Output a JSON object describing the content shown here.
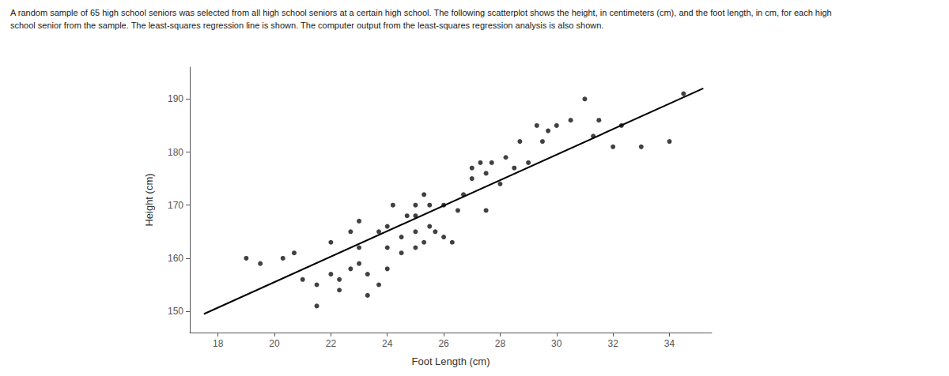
{
  "chart_data": {
    "type": "scatter",
    "title": "A random sample of 65 high school seniors was selected from all high school seniors at a certain high school. The following scatterplot shows the height, in centimeters (cm), and the foot length, in cm, for each high",
    "subtitle": "school senior from the sample. The least-squares regression line is shown. The computer output from the least-squares regression analysis is also shown.",
    "xlabel": "Foot Length (cm)",
    "ylabel": "Height (cm)",
    "xlim": [
      17.0,
      35.5
    ],
    "ylim": [
      146,
      196
    ],
    "xticks": [
      18,
      20,
      22,
      24,
      26,
      28,
      30,
      32,
      34
    ],
    "yticks": [
      150,
      160,
      170,
      180,
      190
    ],
    "grid": false,
    "series": [
      {
        "type": "scatter",
        "color": "#111111",
        "x": [
          19.0,
          19.5,
          20.3,
          20.7,
          21.0,
          21.5,
          21.5,
          22.0,
          22.0,
          22.3,
          22.3,
          22.7,
          22.7,
          23.0,
          23.0,
          23.0,
          23.3,
          23.3,
          23.7,
          23.7,
          24.0,
          24.0,
          24.0,
          24.2,
          24.5,
          24.5,
          24.7,
          25.0,
          25.0,
          25.0,
          25.0,
          25.3,
          25.3,
          25.5,
          25.5,
          25.7,
          26.0,
          26.0,
          26.3,
          26.5,
          26.7,
          27.0,
          27.0,
          27.3,
          27.5,
          27.5,
          27.7,
          28.0,
          28.2,
          28.5,
          28.7,
          29.0,
          29.3,
          29.5,
          29.7,
          30.0,
          30.5,
          31.0,
          31.3,
          31.5,
          32.0,
          32.3,
          33.0,
          34.0,
          34.5
        ],
        "values": [
          160.0,
          159.0,
          160.0,
          161.0,
          156.0,
          151.0,
          155.0,
          157.0,
          163.0,
          154.0,
          156.0,
          158.0,
          165.0,
          159.0,
          162.0,
          167.0,
          153.0,
          157.0,
          155.0,
          165.0,
          158.0,
          162.0,
          166.0,
          170.0,
          161.0,
          164.0,
          168.0,
          162.0,
          165.0,
          168.0,
          170.0,
          172.0,
          163.0,
          166.0,
          170.0,
          165.0,
          164.0,
          170.0,
          163.0,
          169.0,
          172.0,
          175.0,
          177.0,
          178.0,
          169.0,
          176.0,
          178.0,
          174.0,
          179.0,
          177.0,
          182.0,
          178.0,
          185.0,
          182.0,
          184.0,
          185.0,
          186.0,
          190.0,
          183.0,
          186.0,
          181.0,
          185.0,
          181.0,
          182.0,
          191.0
        ]
      },
      {
        "type": "line",
        "color": "#000000",
        "x": [
          17.5,
          35.2
        ],
        "values": [
          149.5,
          192.0
        ]
      }
    ]
  }
}
